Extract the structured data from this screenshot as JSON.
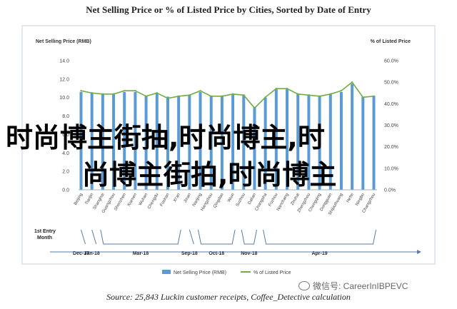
{
  "title": "Net Selling Price or % of Listed Price by Cities, Sorted by Date of Entry",
  "source": "Source: 25,843 Luckin customer receipts, Coffee_Detective calculation",
  "overlay": {
    "line1": "时尚博主街抽,时尚博主,时",
    "line2": "尚博主街拍,时尚博主"
  },
  "watermark": "微信号: CareerInIBPEVC",
  "colors": {
    "bar": "#5b9bd5",
    "line": "#70ad47",
    "axis": "#9fb3c8",
    "timeline": "#5a7ca8"
  },
  "chart_data": {
    "type": "bar",
    "ylabel_left": "Net Selling Price (RMB)",
    "ylabel_right": "% of Listed Price",
    "ylim": [
      0,
      14
    ],
    "yticks": [
      "0.0",
      "2.0",
      "4.0",
      "6.0",
      "8.0",
      "10.0",
      "12.0",
      "14.0"
    ],
    "y2lim": [
      0,
      60
    ],
    "y2ticks": [
      "0.0%",
      "10.0%",
      "20.0%",
      "30.0%",
      "40.0%",
      "50.0%",
      "60.0%"
    ],
    "categories": [
      "Beijing",
      "Tianjin",
      "Shanghai",
      "Guangzhou",
      "Shenzhen",
      "Xiamen",
      "Wuhan",
      "Chengdu",
      "Foshan",
      "Xi'an",
      "Jinan",
      "Nanjing",
      "Hangzhou",
      "Qingdao",
      "Wuxi",
      "Suzhou",
      "Dalian",
      "Changsha",
      "Fuzhou",
      "Nanchang",
      "Zhuhai",
      "Zhengzhou",
      "Chongqing",
      "Dongguan",
      "Shijiazhuang",
      "Hefei",
      "Ningbo",
      "Changzhou"
    ],
    "series": [
      {
        "name": "Net Selling Price (RMB)",
        "type": "bar",
        "values": [
          10.6,
          10.5,
          10.4,
          10.4,
          10.6,
          10.6,
          10.2,
          10.5,
          10.1,
          10.2,
          10.3,
          10.6,
          10.2,
          10.2,
          10.4,
          10.3,
          9.0,
          10.0,
          10.9,
          10.9,
          10.4,
          10.3,
          10.2,
          10.4,
          10.6,
          11.5,
          10.1,
          10.2
        ]
      },
      {
        "name": "% of Listed Price",
        "type": "line",
        "values": [
          46,
          45,
          44.5,
          44.5,
          46,
          46,
          43.5,
          45,
          42.5,
          43.5,
          44,
          46,
          43.5,
          43.5,
          44.5,
          44,
          38,
          43,
          47,
          47,
          44.5,
          44,
          43.5,
          44.5,
          46,
          50,
          43,
          43.5
        ]
      }
    ],
    "timeline": {
      "label_line1": "1st Entry",
      "label_line2": "Month",
      "groups": [
        {
          "label": "Dec-17",
          "start": 0,
          "end": 0
        },
        {
          "label": "Jan-18",
          "start": 1,
          "end": 1
        },
        {
          "label": "Mar-18",
          "start": 2,
          "end": 9
        },
        {
          "label": "Sep-18",
          "start": 10,
          "end": 10
        },
        {
          "label": "Oct-18",
          "start": 11,
          "end": 14
        },
        {
          "label": "Nov-18",
          "start": 15,
          "end": 16
        },
        {
          "label": "Apr-19",
          "start": 17,
          "end": 27
        }
      ]
    },
    "legend": "bottom-center",
    "grid": false
  }
}
